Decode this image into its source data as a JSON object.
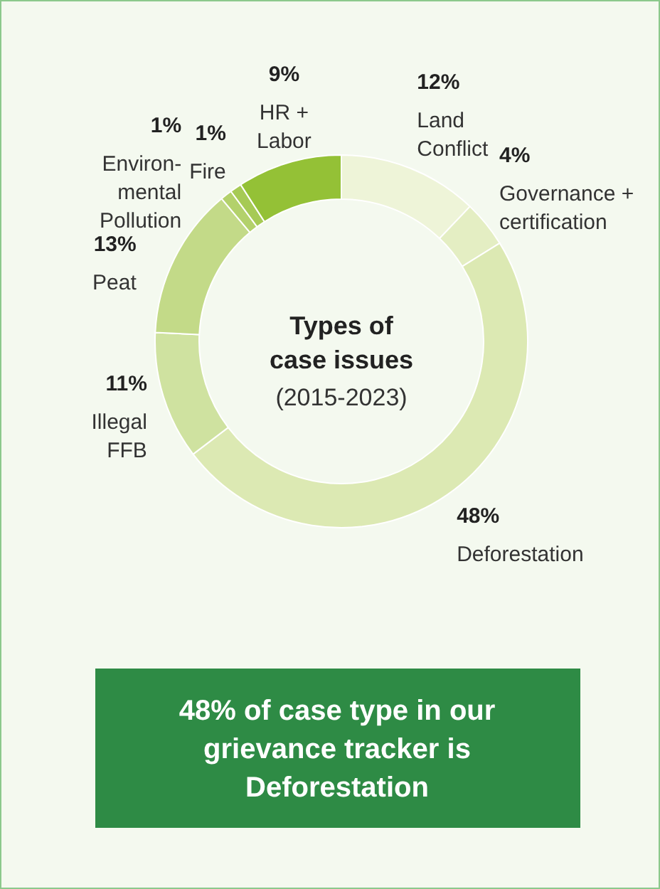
{
  "chart_data": {
    "type": "donut",
    "title": "Types of case issues",
    "subtitle": "(2015-2023)",
    "categories": [
      "Land\nConflict",
      "Governance +\ncertification",
      "Deforestation",
      "Illegal\nFFB",
      "Peat",
      "Environ-\nmental\nPollution",
      "Fire",
      "HR +\nLabor"
    ],
    "values": [
      12,
      4,
      48,
      11,
      13,
      1,
      1,
      9
    ],
    "value_labels": [
      "12%",
      "4%",
      "48%",
      "11%",
      "13%",
      "1%",
      "1%",
      "9%"
    ],
    "colors": [
      "#eef4d8",
      "#e4eec3",
      "#dce9b3",
      "#cfe2a0",
      "#c3da88",
      "#b3d16b",
      "#a6ca55",
      "#94c136"
    ],
    "annotations": [
      "48% of case type in our grievance tracker is Deforestation"
    ]
  }
}
